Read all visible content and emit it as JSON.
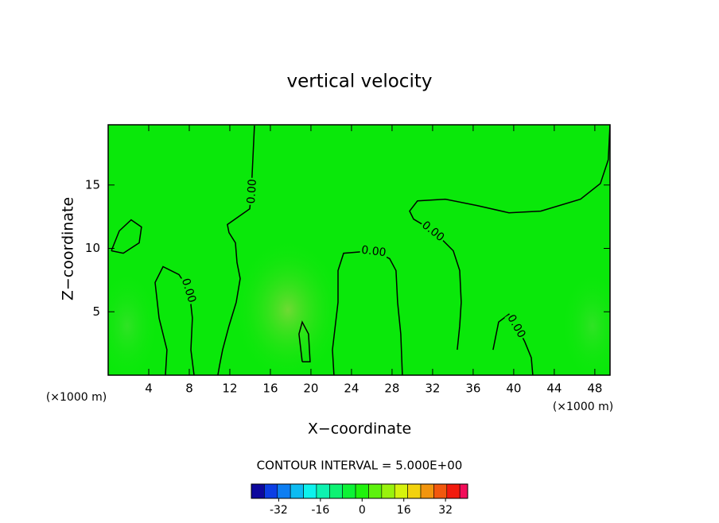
{
  "chart_data": {
    "type": "contour",
    "title": "vertical velocity",
    "xlabel": "X−coordinate",
    "ylabel": "Z−coordinate",
    "xunit_label": "(×1000 m)",
    "yunit_label": "(×1000 m)",
    "xlim": [
      0,
      49.5
    ],
    "ylim": [
      0,
      19.75
    ],
    "xticks": [
      4,
      8,
      12,
      16,
      20,
      24,
      28,
      32,
      36,
      40,
      44,
      48
    ],
    "yticks": [
      5,
      10,
      15
    ],
    "line_color": "#000000",
    "contours": [
      {
        "level": 0,
        "label": "0.00",
        "x": [
          14.43,
          14.27,
          14.12,
          13.96,
          12.86,
          11.76,
          11.92,
          12.55,
          12.71,
          13.02,
          12.63,
          11.92,
          11.29,
          10.98,
          10.82
        ],
        "y": [
          19.69,
          17,
          14.5,
          13.12,
          12.5,
          11.88,
          11.25,
          10.44,
          8.88,
          7.62,
          5.75,
          3.88,
          2,
          0.75,
          0
        ]
      },
      {
        "level": 0,
        "label": "0.00",
        "x": [
          49.49,
          49.33,
          48.55,
          46.59,
          42.67,
          39.53,
          36.39,
          33.25,
          30.51,
          29.73,
          30.12,
          32.08,
          34.04,
          34.67,
          34.82,
          34.67,
          34.43
        ],
        "y": [
          19.69,
          17,
          15.12,
          13.88,
          12.94,
          12.81,
          13.38,
          13.88,
          13.75,
          12.94,
          12.31,
          11.38,
          9.81,
          8.25,
          5.75,
          3.88,
          2
        ]
      },
      {
        "level": 0,
        "label": "0.00",
        "x": [
          22.27,
          22.12,
          22.67,
          22.67,
          23.22,
          26.2,
          27.76,
          28.39,
          28.55,
          28.86,
          29.02
        ],
        "y": [
          0,
          2,
          5.75,
          8.25,
          9.62,
          9.81,
          9.19,
          8.25,
          5.75,
          3.25,
          0
        ]
      },
      {
        "level": 0,
        "label": "0.00",
        "x": [
          5.65,
          5.8,
          5.02,
          4.63,
          5.41,
          6.98,
          8,
          8.31,
          8.16,
          8.47
        ],
        "y": [
          0,
          2,
          4.5,
          7.31,
          8.56,
          7.94,
          6.69,
          4.5,
          2,
          0
        ]
      },
      {
        "level": 0,
        "x": [
          0.31,
          1.1,
          2.27,
          3.29,
          3.06,
          1.49,
          0.31
        ],
        "y": [
          9.81,
          11.38,
          12.25,
          11.69,
          10.44,
          9.62,
          9.81
        ]
      },
      {
        "level": 0,
        "x": [
          19.14,
          18.82,
          19.14,
          19.76,
          19.92,
          19.14
        ],
        "y": [
          1.06,
          3.25,
          4.19,
          3.25,
          1.06,
          1.06
        ]
      },
      {
        "level": 0,
        "label": "0.00",
        "x": [
          37.96,
          38.51,
          39.53,
          40.31,
          41.1,
          41.73,
          41.88
        ],
        "y": [
          2,
          4.19,
          4.81,
          3.88,
          2.62,
          1.38,
          0
        ]
      }
    ],
    "colorbar": {
      "label": "CONTOUR INTERVAL = 5.000E+00",
      "interval": 5,
      "lim": [
        -42.5,
        40.5
      ],
      "ticks": [
        -32,
        -16,
        0,
        16,
        32
      ]
    }
  }
}
